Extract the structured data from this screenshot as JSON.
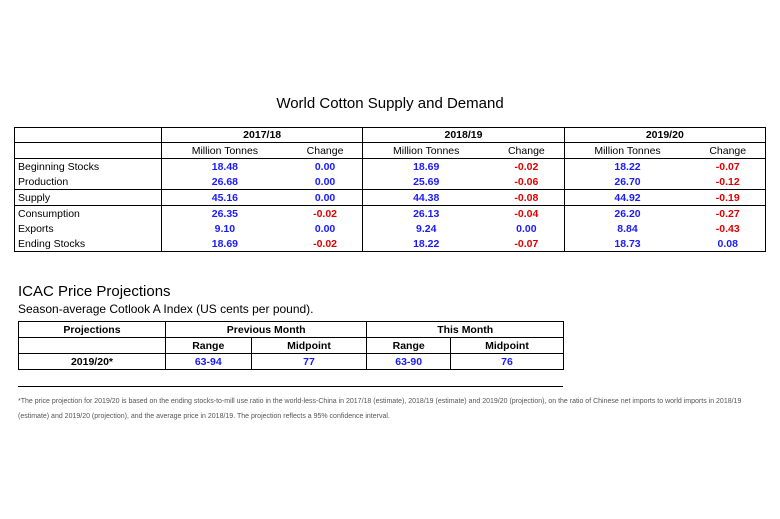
{
  "title": "World Cotton Supply and Demand",
  "supply_table": {
    "years": [
      "2017/18",
      "2018/19",
      "2019/20"
    ],
    "sub_headers": {
      "mt": "Million Tonnes",
      "change": "Change"
    },
    "rows": [
      {
        "label": "Beginning Stocks",
        "v": [
          "18.48",
          "0.00",
          "18.69",
          "-0.02",
          "18.22",
          "-0.07"
        ]
      },
      {
        "label": "Production",
        "v": [
          "26.68",
          "0.00",
          "25.69",
          "-0.06",
          "26.70",
          "-0.12"
        ]
      },
      {
        "label": "Supply",
        "v": [
          "45.16",
          "0.00",
          "44.38",
          "-0.08",
          "44.92",
          "-0.19"
        ]
      },
      {
        "label": "Consumption",
        "v": [
          "26.35",
          "-0.02",
          "26.13",
          "-0.04",
          "26.20",
          "-0.27"
        ]
      },
      {
        "label": "Exports",
        "v": [
          "9.10",
          "0.00",
          "9.24",
          "0.00",
          "8.84",
          "-0.43"
        ]
      },
      {
        "label": "Ending Stocks",
        "v": [
          "18.69",
          "-0.02",
          "18.22",
          "-0.07",
          "18.73",
          "0.08"
        ]
      }
    ]
  },
  "icac": {
    "title": "ICAC Price Projections",
    "subtitle": "Season-average Cotlook A Index (US cents per pound).",
    "header_projections": "Projections",
    "header_prev": "Previous Month",
    "header_this": "This Month",
    "sub_range": "Range",
    "sub_midpoint": "Midpoint",
    "row_label": "2019/20*",
    "prev_range": "63-94",
    "prev_mid": "77",
    "this_range": "63-90",
    "this_mid": "76"
  },
  "footnote": "*The price projection for 2019/20 is based on the ending stocks-to-mill use ratio in the world-less-China in 2017/18 (estimate), 2018/19 (estimate) and 2019/20 (projection), on the ratio of Chinese net imports to world imports in 2018/19 (estimate) and 2019/20 (projection), and the average price in 2018/19. The projection reflects a 95% confidence interval.",
  "colors": {
    "value_blue": "#1a1aff",
    "negative_red": "#e00000"
  }
}
